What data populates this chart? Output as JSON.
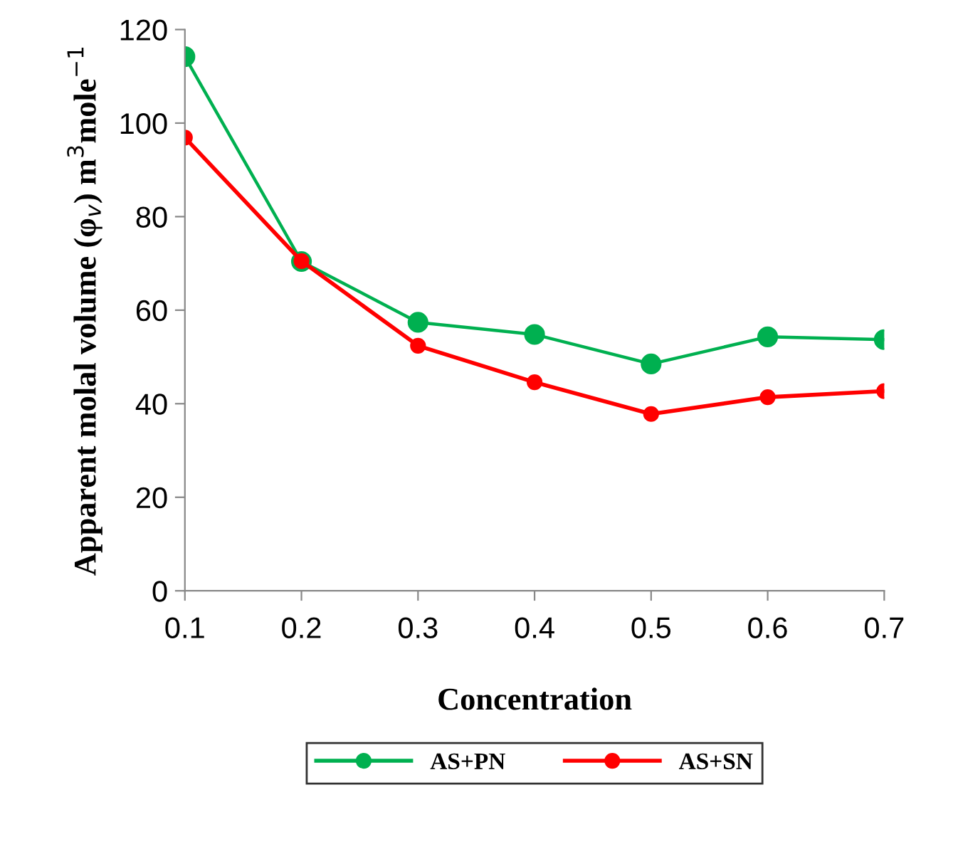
{
  "chart_data": {
    "type": "line",
    "xlabel": "Concentration",
    "ylabel": "Apparent molal volume (φ$_{v}$) m$^{3}$mole$^{−1}$",
    "x": [
      0.1,
      0.2,
      0.3,
      0.4,
      0.5,
      0.6,
      0.7
    ],
    "series": [
      {
        "name": "AS+PN",
        "color": "#00b050",
        "values": [
          114.2,
          70.4,
          57.4,
          54.8,
          48.5,
          54.3,
          53.7
        ]
      },
      {
        "name": "AS+SN",
        "color": "#ff0000",
        "values": [
          96.9,
          70.5,
          52.4,
          44.6,
          37.8,
          41.4,
          42.7
        ]
      }
    ],
    "xlim": [
      0.1,
      0.7
    ],
    "xticks": [
      0.1,
      0.2,
      0.3,
      0.4,
      0.5,
      0.6,
      0.7
    ],
    "ylim": [
      0,
      120
    ],
    "yticks": [
      0,
      20,
      40,
      60,
      80,
      100,
      120
    ],
    "grid": false,
    "legend": "bottom",
    "marker": "circle",
    "line_style": "solid"
  }
}
